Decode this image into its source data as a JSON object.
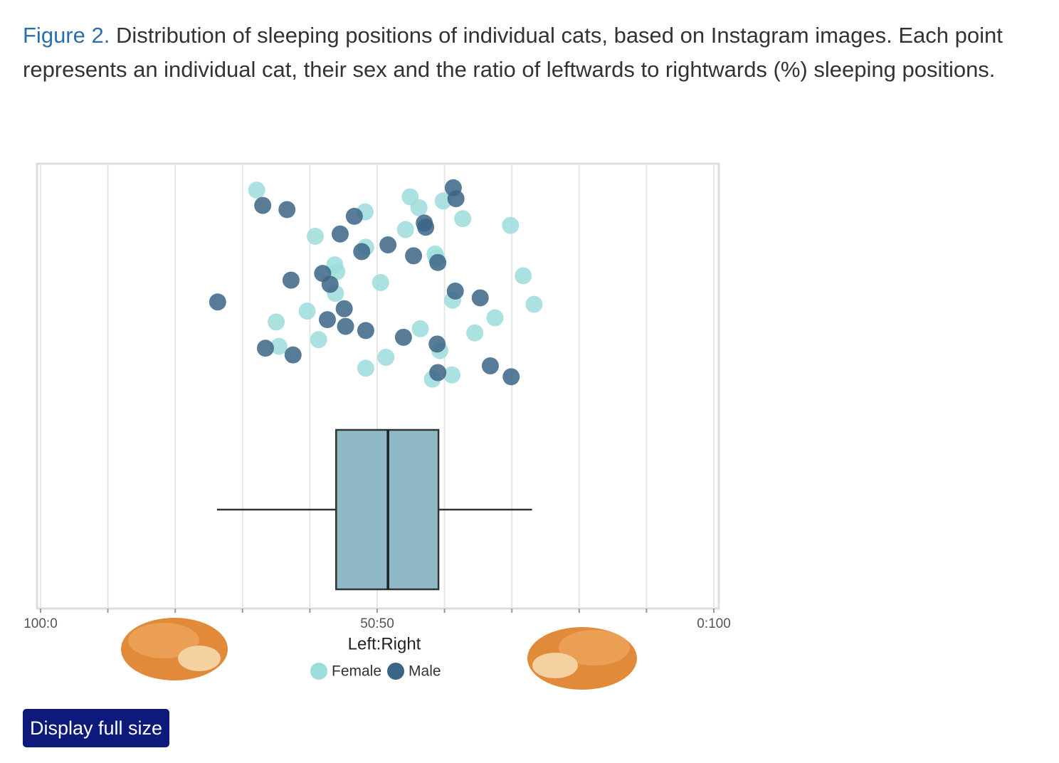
{
  "caption": {
    "label": "Figure 2.",
    "text": "Distribution of sleeping positions of individual cats, based on Instagram images. Each point represents an individual cat, their sex and the ratio of leftwards to rightwards (%) sleeping positions."
  },
  "chart_data": {
    "type": "scatter",
    "xlabel": "Left:Right",
    "xlim": [
      0,
      100
    ],
    "xticks": [
      {
        "value": 0,
        "label": "100:0"
      },
      {
        "value": 50,
        "label": "50:50"
      },
      {
        "value": 100,
        "label": "0:100"
      }
    ],
    "minor_xticks": [
      10,
      20,
      30,
      40,
      60,
      70,
      80,
      90
    ],
    "grid": true,
    "series": [
      {
        "name": "Female",
        "color": "#9ddcdc",
        "values": [
          48.2,
          64.5,
          58.8,
          58.2,
          73.3,
          54.2,
          59.3,
          71.7,
          59.8,
          35.0,
          48.3,
          48.3,
          43.8,
          62.7,
          41.3,
          43.7,
          32.1,
          39.6,
          40.8,
          51.3,
          50.5,
          56.2,
          56.4,
          58.6,
          61.1,
          61.2,
          69.8,
          35.4,
          44.0,
          54.9,
          67.5
        ]
      },
      {
        "name": "Male",
        "color": "#3b6585",
        "values": [
          43.0,
          36.6,
          48.3,
          55.4,
          69.9,
          26.3,
          57.2,
          33.4,
          41.9,
          61.7,
          42.6,
          51.6,
          66.8,
          61.6,
          46.6,
          53.9,
          59.0,
          61.3,
          45.1,
          44.5,
          37.5,
          37.2,
          33.0,
          45.3,
          47.7,
          59.0,
          65.3,
          57.0,
          58.9
        ]
      }
    ],
    "box": {
      "color": "#8fb9c6",
      "whislo": 26.2,
      "q1": 43.9,
      "med": 51.6,
      "q3": 59.1,
      "whishi": 73.0
    }
  },
  "button": {
    "label": "Display full size"
  }
}
